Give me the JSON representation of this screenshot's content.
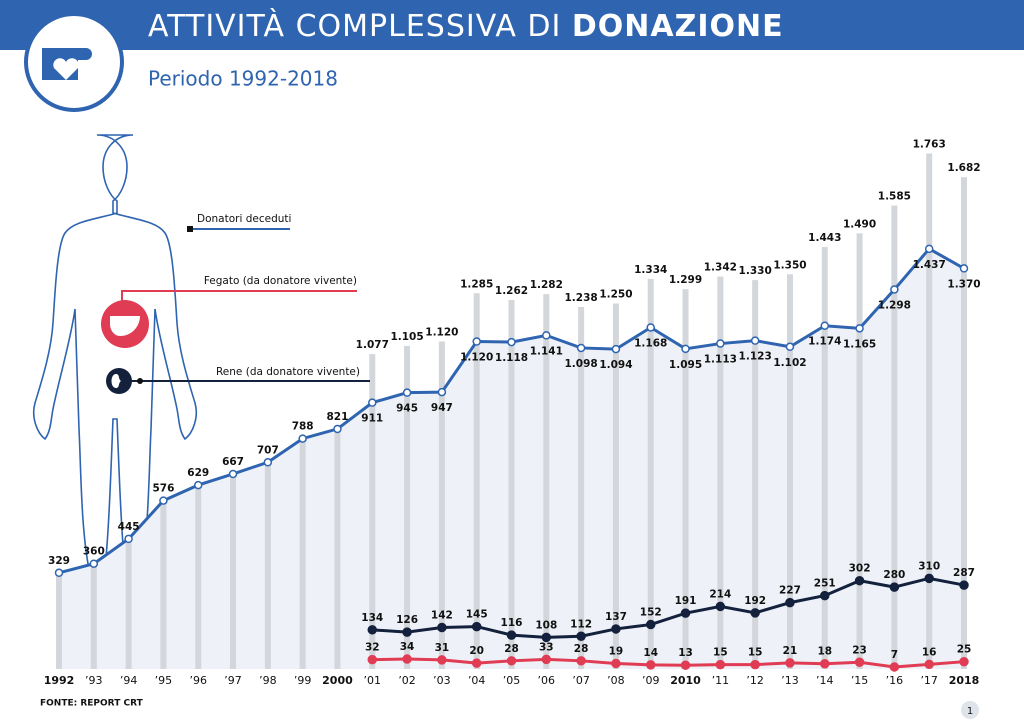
{
  "header": {
    "title": "ATTIVITÀ COMPLESSIVA DI ",
    "title_bold": "DONAZIONE",
    "subtitle": "Periodo 1992-2018"
  },
  "chart_data": {
    "type": "line",
    "categories": [
      "1992",
      "’93",
      "’94",
      "’95",
      "’96",
      "’97",
      "’98",
      "’99",
      "2000",
      "’01",
      "’02",
      "’03",
      "’04",
      "’05",
      "’06",
      "’07",
      "’08",
      "’09",
      "2010",
      "’11",
      "’12",
      "’13",
      "’14",
      "’15",
      "’16",
      "’17",
      "2018"
    ],
    "ylim": [
      0,
      2000
    ],
    "bar_color": "#d3d6da",
    "bar_values": [
      null,
      null,
      null,
      null,
      null,
      null,
      null,
      null,
      null,
      1077,
      1105,
      1120,
      1285,
      1262,
      1282,
      1238,
      1250,
      1334,
      1299,
      1342,
      1330,
      1350,
      1443,
      1490,
      1585,
      1763,
      1682
    ],
    "bar_value_labels": [
      null,
      null,
      null,
      null,
      null,
      null,
      null,
      null,
      null,
      "1.077",
      "1.105",
      "1.120",
      "1.285",
      "1.262",
      "1.282",
      "1.238",
      "1.250",
      "1.334",
      "1.299",
      "1.342",
      "1.330",
      "1.350",
      "1.443",
      "1.490",
      "1.585",
      "1.763",
      "1.682"
    ],
    "series": [
      {
        "name": "Donatori deceduti",
        "color": "#2f64b0",
        "values": [
          329,
          360,
          445,
          576,
          629,
          667,
          707,
          788,
          821,
          911,
          945,
          947,
          1120,
          1118,
          1141,
          1098,
          1094,
          1168,
          1095,
          1113,
          1123,
          1102,
          1174,
          1165,
          1298,
          1437,
          1370
        ],
        "value_labels": [
          "329",
          "360",
          "445",
          "576",
          "629",
          "667",
          "707",
          "788",
          "821",
          "911",
          "945",
          "947",
          "1.120",
          "1.118",
          "1.141",
          "1.098",
          "1.094",
          "1.168",
          "1.095",
          "1.113",
          "1.123",
          "1.102",
          "1.174",
          "1.165",
          "1.298",
          "1.437",
          "1.370"
        ]
      },
      {
        "name": "Fegato (da donatore vivente)",
        "color": "#e03c54",
        "values": [
          null,
          null,
          null,
          null,
          null,
          null,
          null,
          null,
          null,
          32,
          34,
          31,
          20,
          28,
          33,
          28,
          19,
          14,
          13,
          15,
          15,
          21,
          18,
          23,
          7,
          16,
          25
        ]
      },
      {
        "name": "Rene  (da donatore vivente)",
        "color": "#14213d",
        "values": [
          null,
          null,
          null,
          null,
          null,
          null,
          null,
          null,
          null,
          134,
          126,
          142,
          145,
          116,
          108,
          112,
          137,
          152,
          191,
          214,
          192,
          227,
          251,
          302,
          280,
          310,
          287
        ]
      }
    ]
  },
  "source": "FONTE:  REPORT CRT",
  "page_number": "1"
}
